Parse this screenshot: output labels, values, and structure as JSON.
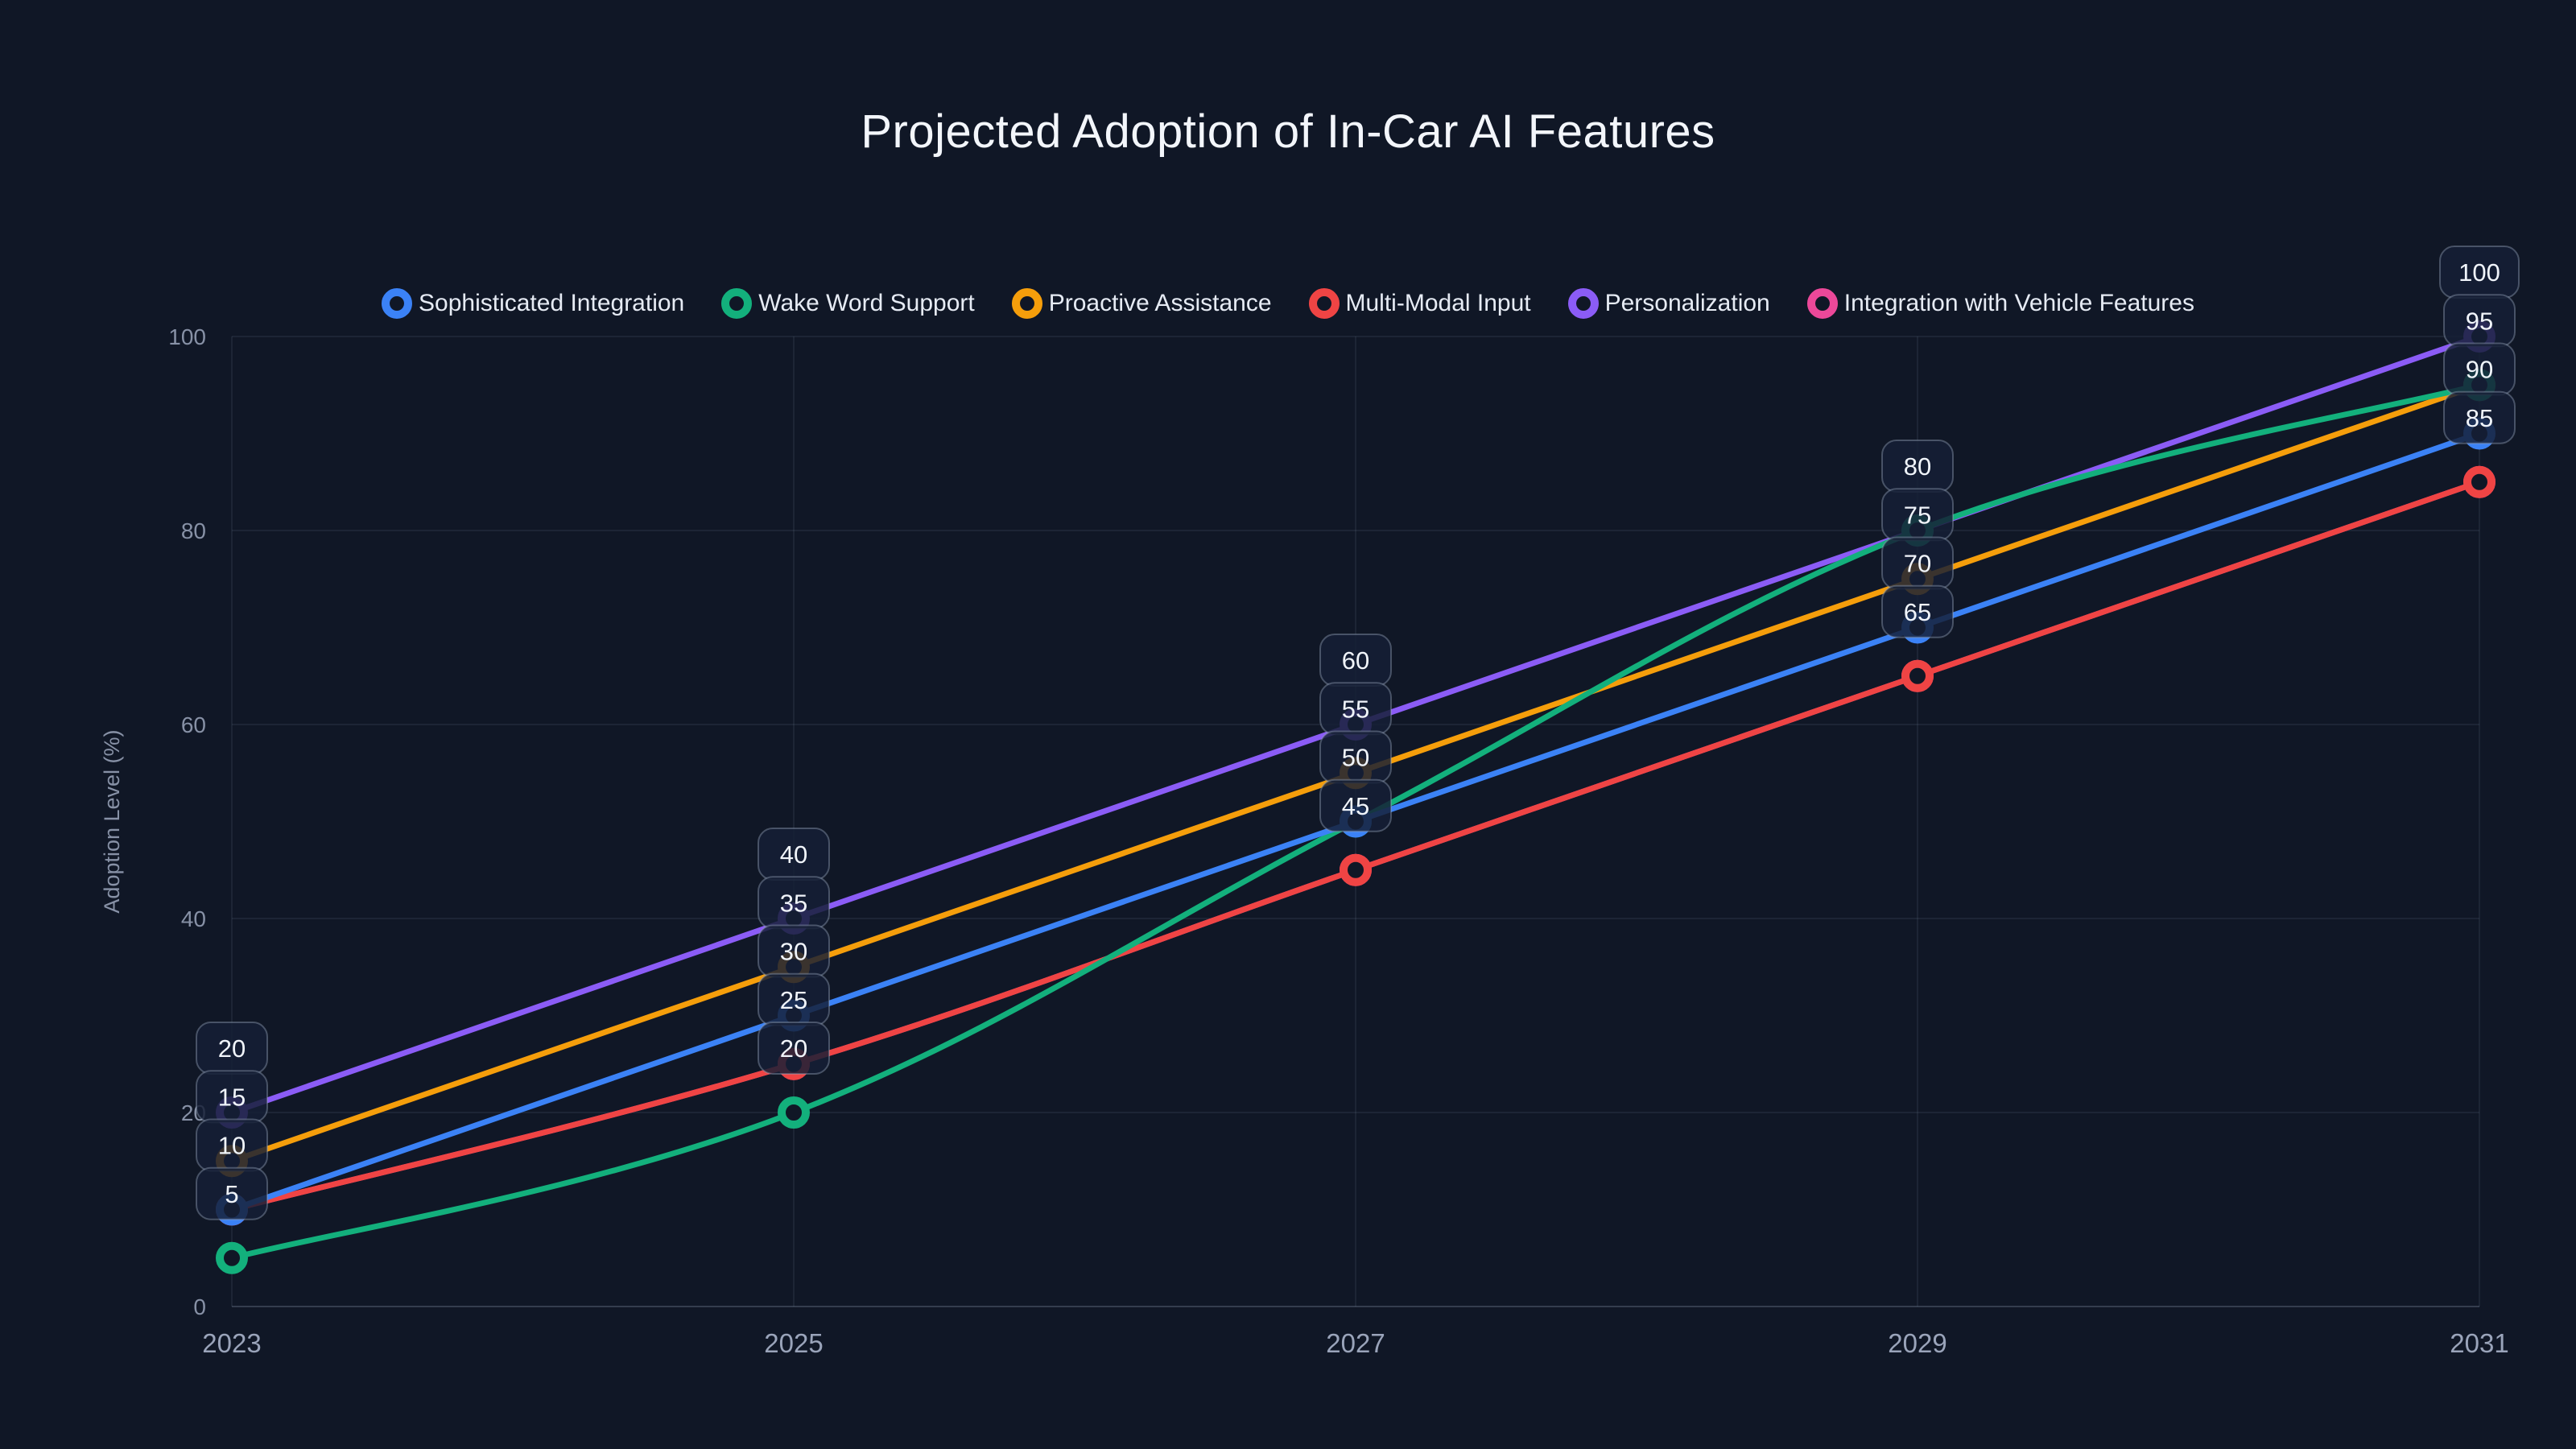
{
  "title": "Projected Adoption of In-Car AI Features",
  "chart_data": {
    "type": "line",
    "x": [
      2023,
      2025,
      2027,
      2029,
      2031
    ],
    "xlabel": "",
    "ylabel": "Adoption Level (%)",
    "ylim": [
      0,
      100
    ],
    "yticks": [
      0,
      20,
      40,
      60,
      80,
      100
    ],
    "grid": true,
    "legend_position": "top",
    "point_style": "hollow-circle",
    "data_labels": true,
    "series": [
      {
        "name": "Sophisticated Integration",
        "color": "#3b82f6",
        "values": [
          10,
          30,
          50,
          70,
          90
        ]
      },
      {
        "name": "Wake Word Support",
        "color": "#13b07c",
        "values": [
          5,
          20,
          50,
          80,
          95
        ]
      },
      {
        "name": "Proactive Assistance",
        "color": "#f59e0b",
        "values": [
          15,
          35,
          55,
          75,
          95
        ]
      },
      {
        "name": "Multi-Modal Input",
        "color": "#ef4444",
        "values": [
          10,
          25,
          45,
          65,
          85
        ]
      },
      {
        "name": "Personalization",
        "color": "#8b5cf6",
        "values": [
          20,
          40,
          60,
          80,
          100
        ]
      },
      {
        "name": "Integration with Vehicle Features",
        "color": "#ec4899",
        "values": [
          10,
          25,
          45,
          65,
          85
        ]
      }
    ],
    "visible_point_labels": {
      "2023": [
        20,
        15,
        10,
        5
      ],
      "2025": [
        40,
        35,
        30,
        25,
        20
      ],
      "2027": [
        60,
        55,
        50,
        45
      ],
      "2029": [
        80,
        75,
        70,
        65
      ],
      "2031": [
        100,
        95,
        90,
        85
      ]
    }
  },
  "theme": {
    "background": "#101726",
    "grid_color": "rgba(148,163,184,0.10)",
    "axis_line_color": "rgba(148,163,184,0.28)",
    "y_tick_color": "#8791a6",
    "x_tick_color": "#9aa4ba",
    "axis_title_color": "#8791a6",
    "title_color": "#f3f6fb",
    "legend_text_color": "#e6ebf4",
    "label_box_fill": "#161f36",
    "label_box_border": "rgba(148,163,184,0.42)",
    "label_text_color": "#f0f4fa"
  }
}
